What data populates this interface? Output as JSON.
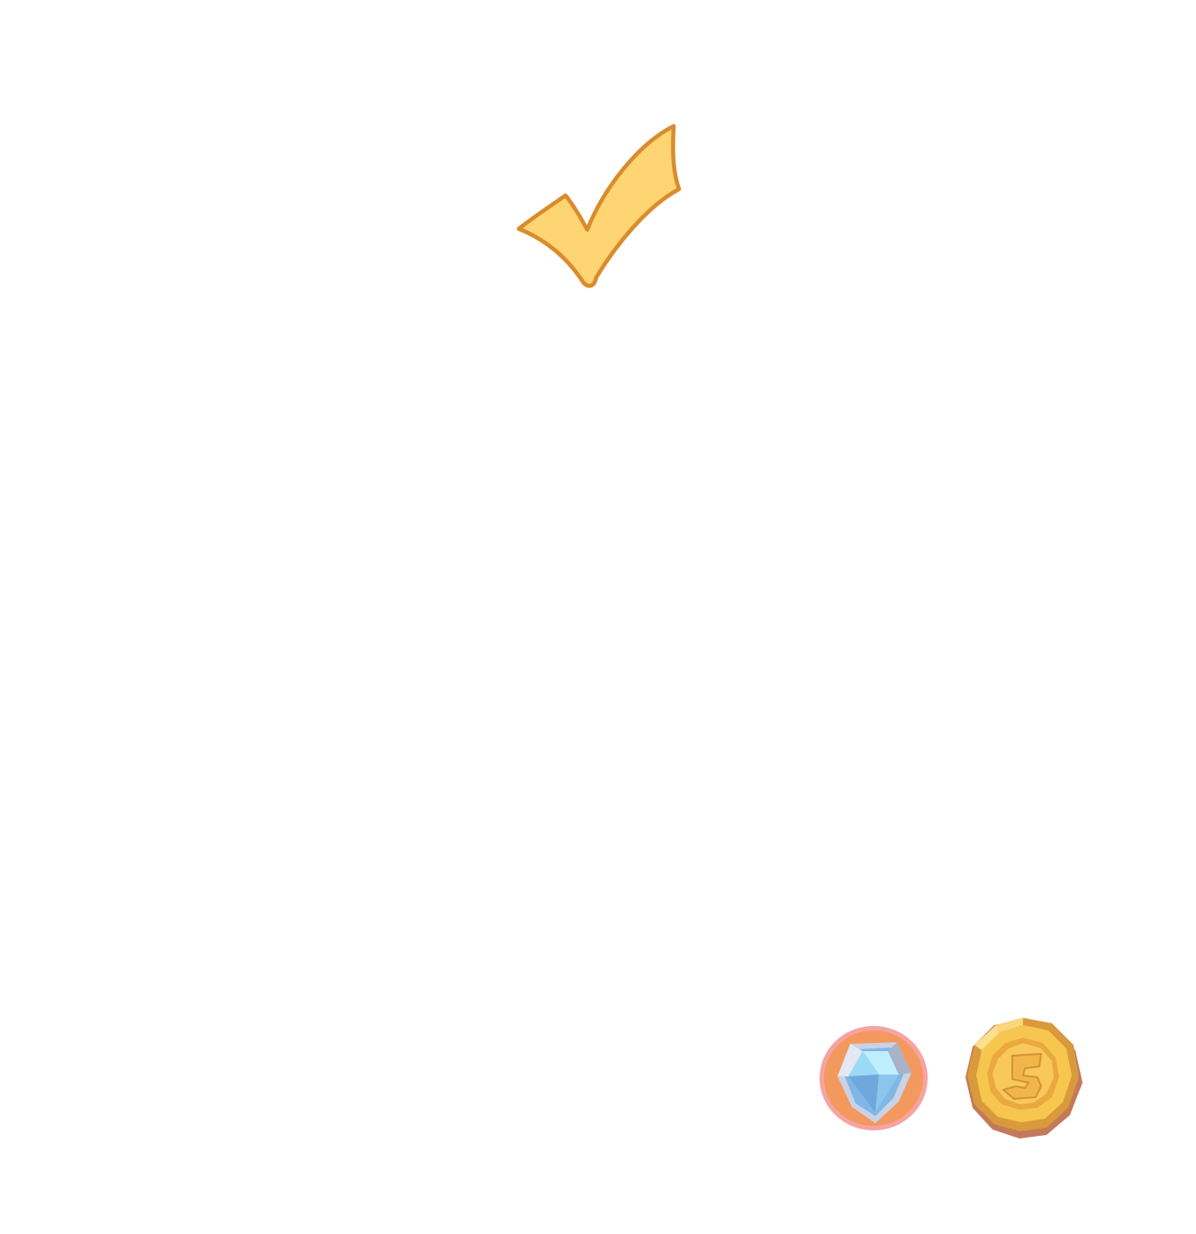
{
  "scene": {
    "background_color": "#ffffff",
    "icons": {
      "checkmark": {
        "name": "checkmark-icon",
        "fill": "#FFD472",
        "stroke": "#D98C2E"
      },
      "gem": {
        "name": "diamond-gem-icon",
        "ring": "#F5A3A3",
        "disc": "#F3995E",
        "gem_light": "#BFEFFB",
        "gem_dark": "#6FA8DD"
      },
      "coin": {
        "name": "gold-coin-icon",
        "face": "#F7C64F",
        "edge": "#D99A3C",
        "shadow": "#C47A5A"
      }
    }
  }
}
